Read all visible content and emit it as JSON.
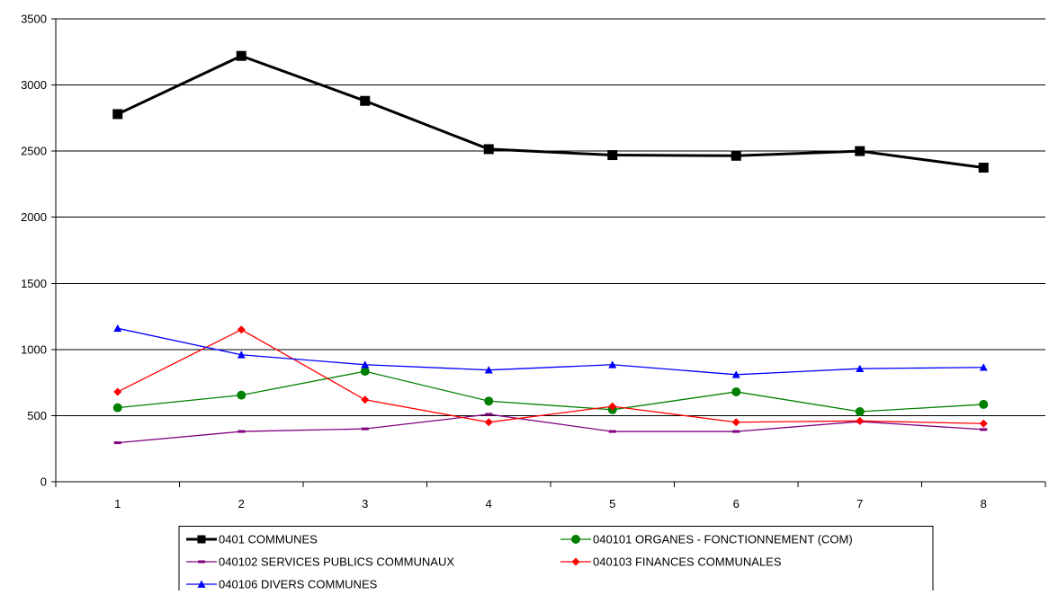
{
  "chart_data": {
    "type": "line",
    "categories": [
      "1",
      "2",
      "3",
      "4",
      "5",
      "6",
      "7",
      "8"
    ],
    "ylim": [
      0,
      3500
    ],
    "yticks": [
      0,
      500,
      1000,
      1500,
      2000,
      2500,
      3000,
      3500
    ],
    "grid": "horizontal",
    "legend_position": "bottom",
    "series": [
      {
        "name": "0401 COMMUNES",
        "values": [
          2780,
          3220,
          2880,
          2515,
          2470,
          2465,
          2500,
          2375
        ],
        "color": "#000000",
        "marker": "square"
      },
      {
        "name": "040101 ORGANES - FONCTIONNEMENT (COM)",
        "values": [
          560,
          655,
          835,
          610,
          545,
          680,
          530,
          585
        ],
        "color": "#008000",
        "marker": "circle"
      },
      {
        "name": "040102 SERVICES PUBLICS COMMUNAUX",
        "values": [
          295,
          380,
          400,
          510,
          380,
          380,
          455,
          395
        ],
        "color": "#800080",
        "marker": "dash"
      },
      {
        "name": "040103 FINANCES COMMUNALES",
        "values": [
          680,
          1150,
          620,
          450,
          570,
          450,
          460,
          440
        ],
        "color": "#ff0000",
        "marker": "diamond"
      },
      {
        "name": "040106 DIVERS COMMUNES",
        "values": [
          1160,
          960,
          885,
          845,
          885,
          810,
          855,
          865
        ],
        "color": "#0000ff",
        "marker": "triangle"
      }
    ]
  }
}
